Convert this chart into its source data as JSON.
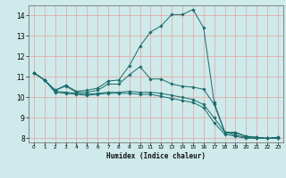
{
  "xlabel": "Humidex (Indice chaleur)",
  "bg_color": "#ceeaea",
  "grid_color": "#e8a0a0",
  "line_color": "#1a6b6b",
  "xlim": [
    -0.5,
    23.5
  ],
  "ylim": [
    7.8,
    14.5
  ],
  "yticks": [
    8,
    9,
    10,
    11,
    12,
    13,
    14
  ],
  "xticks": [
    0,
    1,
    2,
    3,
    4,
    5,
    6,
    7,
    8,
    9,
    10,
    11,
    12,
    13,
    14,
    15,
    16,
    17,
    18,
    19,
    20,
    21,
    22,
    23
  ],
  "line1_x": [
    0,
    1,
    2,
    3,
    4,
    5,
    6,
    7,
    8,
    9,
    10,
    11,
    12,
    13,
    14,
    15,
    16,
    17,
    18,
    19,
    20,
    21,
    22,
    23
  ],
  "line1_y": [
    11.2,
    10.85,
    10.35,
    10.6,
    10.3,
    10.35,
    10.45,
    10.8,
    10.85,
    11.55,
    12.5,
    13.2,
    13.5,
    14.05,
    14.05,
    14.3,
    13.4,
    9.75,
    8.3,
    8.3,
    8.1,
    8.05,
    8.0,
    8.05
  ],
  "line2_x": [
    0,
    1,
    2,
    3,
    4,
    5,
    6,
    7,
    8,
    9,
    10,
    11,
    12,
    13,
    14,
    15,
    16,
    17,
    18,
    19,
    20,
    21,
    22,
    23
  ],
  "line2_y": [
    11.2,
    10.85,
    10.35,
    10.55,
    10.25,
    10.25,
    10.35,
    10.65,
    10.65,
    11.1,
    11.5,
    10.9,
    10.9,
    10.65,
    10.55,
    10.5,
    10.4,
    9.65,
    8.3,
    8.25,
    8.1,
    8.05,
    8.0,
    8.05
  ],
  "line3_x": [
    0,
    1,
    2,
    3,
    4,
    5,
    6,
    7,
    8,
    9,
    10,
    11,
    12,
    13,
    14,
    15,
    16,
    17,
    18,
    19,
    20,
    21,
    22,
    23
  ],
  "line3_y": [
    11.2,
    10.85,
    10.3,
    10.25,
    10.2,
    10.15,
    10.2,
    10.25,
    10.25,
    10.3,
    10.25,
    10.25,
    10.2,
    10.1,
    10.0,
    9.9,
    9.65,
    9.0,
    8.3,
    8.15,
    8.05,
    8.0,
    8.0,
    8.0
  ],
  "line4_x": [
    0,
    1,
    2,
    3,
    4,
    5,
    6,
    7,
    8,
    9,
    10,
    11,
    12,
    13,
    14,
    15,
    16,
    17,
    18,
    19,
    20,
    21,
    22,
    23
  ],
  "line4_y": [
    11.2,
    10.85,
    10.25,
    10.2,
    10.15,
    10.1,
    10.15,
    10.2,
    10.2,
    10.2,
    10.15,
    10.15,
    10.05,
    9.95,
    9.85,
    9.75,
    9.5,
    8.75,
    8.2,
    8.1,
    8.0,
    8.0,
    8.0,
    8.0
  ]
}
